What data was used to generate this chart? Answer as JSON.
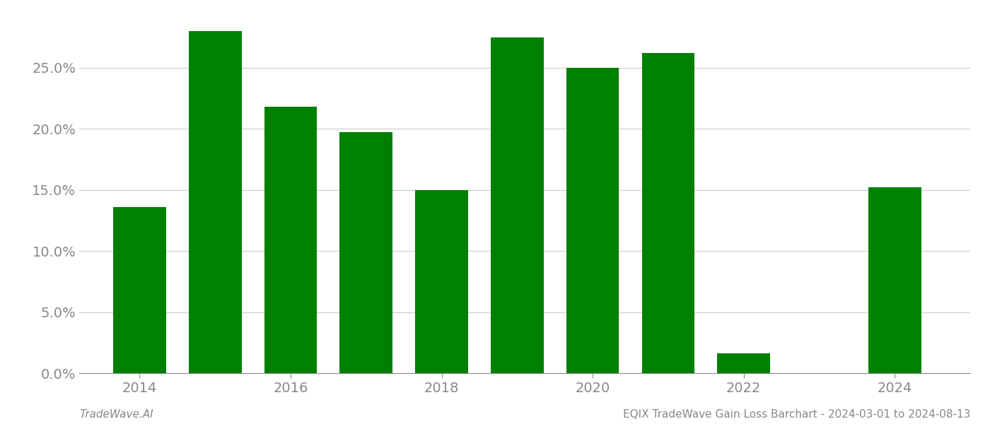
{
  "years": [
    2014,
    2015,
    2016,
    2017,
    2018,
    2019,
    2020,
    2021,
    2022,
    2023,
    2024
  ],
  "values": [
    0.136,
    0.28,
    0.218,
    0.197,
    0.15,
    0.275,
    0.25,
    0.262,
    0.016,
    null,
    0.152
  ],
  "bar_color": "#008000",
  "background_color": "#ffffff",
  "ylim": [
    0,
    0.295
  ],
  "yticks": [
    0.0,
    0.05,
    0.1,
    0.15,
    0.2,
    0.25
  ],
  "footer_left": "TradeWave.AI",
  "footer_right": "EQIX TradeWave Gain Loss Barchart - 2024-03-01 to 2024-08-13",
  "grid_color": "#cccccc",
  "tick_color": "#888888",
  "footer_fontsize": 11,
  "bar_width": 0.7,
  "xlim_left": 2013.2,
  "xlim_right": 2025.0,
  "xtick_positions": [
    2014,
    2016,
    2018,
    2020,
    2022,
    2024
  ],
  "tick_labelsize": 14
}
